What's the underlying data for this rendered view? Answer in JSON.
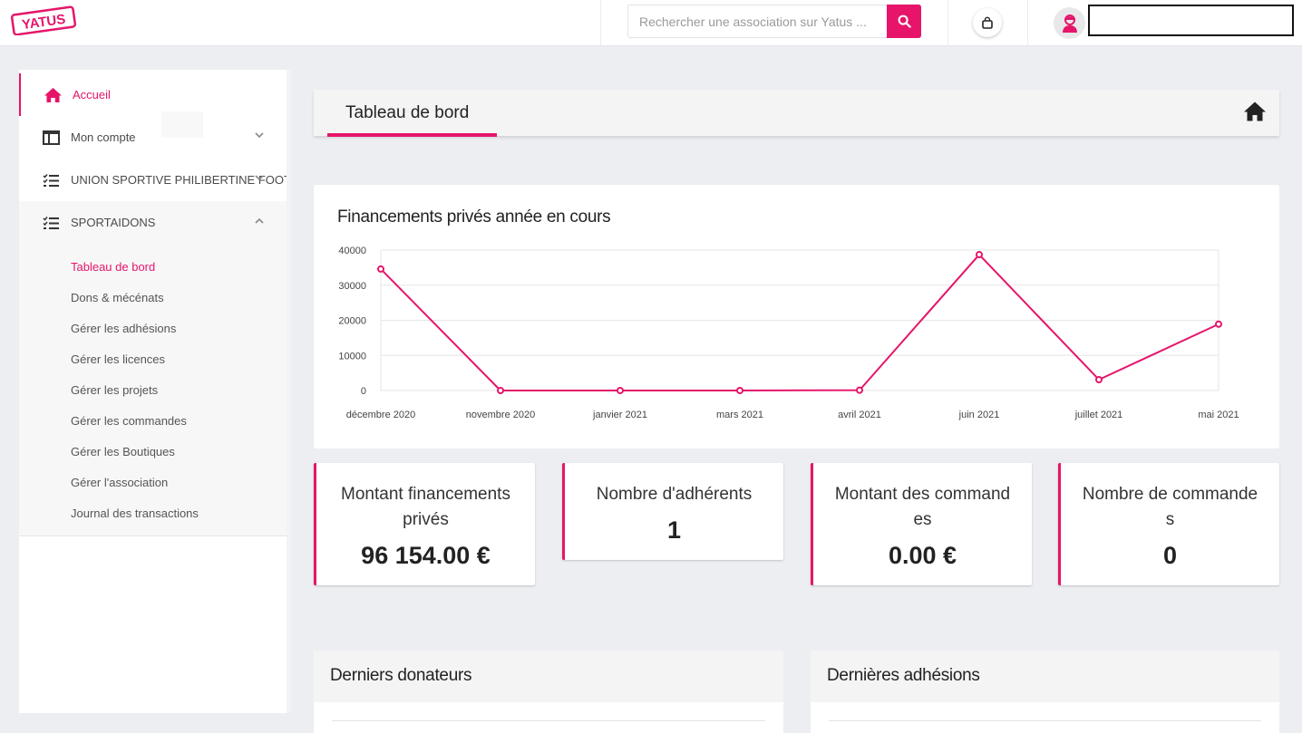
{
  "header": {
    "logo_text": "YATUS",
    "search_placeholder": "Rechercher une association sur Yatus ...",
    "search_value": ""
  },
  "sidebar": {
    "items": [
      {
        "label": "Accueil",
        "icon": "home-icon",
        "active": true
      },
      {
        "label": "Mon compte",
        "icon": "columns-icon",
        "chevron": "chevron-down-icon"
      },
      {
        "label": "UNION SPORTIVE PHILIBERTINE FOOTBALL",
        "icon": "checklist-icon",
        "chevron": "chevron-down-icon"
      },
      {
        "label": "SPORTAIDONS",
        "icon": "checklist-icon",
        "chevron": "chevron-up-icon",
        "open": true
      }
    ],
    "sub_items": [
      {
        "label": "Tableau de bord",
        "active": true
      },
      {
        "label": "Dons & mécénats"
      },
      {
        "label": "Gérer les adhésions"
      },
      {
        "label": "Gérer les licences"
      },
      {
        "label": "Gérer les projets"
      },
      {
        "label": "Gérer les commandes"
      },
      {
        "label": "Gérer les Boutiques"
      },
      {
        "label": "Gérer l'association"
      },
      {
        "label": "Journal des transactions"
      }
    ]
  },
  "page": {
    "title": "Tableau de bord"
  },
  "chart": {
    "title": "Financements privés année en cours"
  },
  "chart_data": {
    "type": "line",
    "title": "Financements privés année en cours",
    "categories": [
      "décembre 2020",
      "novembre 2020",
      "janvier 2021",
      "mars 2021",
      "avril 2021",
      "juin 2021",
      "juillet 2021",
      "mai 2021"
    ],
    "values": [
      34600,
      0,
      0,
      0,
      100,
      38700,
      3100,
      18900
    ],
    "ylim": [
      0,
      40000
    ],
    "yticks": [
      0,
      10000,
      20000,
      30000,
      40000
    ],
    "grid": true,
    "color": "#e6156a"
  },
  "stats": [
    {
      "label": "Montant financements privés",
      "value": "96 154.00 €"
    },
    {
      "label": "Nombre d'adhérents",
      "value": "1"
    },
    {
      "label": "Montant des commandes",
      "value": "0.00 €"
    },
    {
      "label": "Nombre de commandes",
      "value": "0"
    }
  ],
  "panels": {
    "donors_title": "Derniers donateurs",
    "members_title": "Dernières adhésions"
  },
  "colors": {
    "accent": "#e6156a",
    "background": "#eceef2"
  }
}
